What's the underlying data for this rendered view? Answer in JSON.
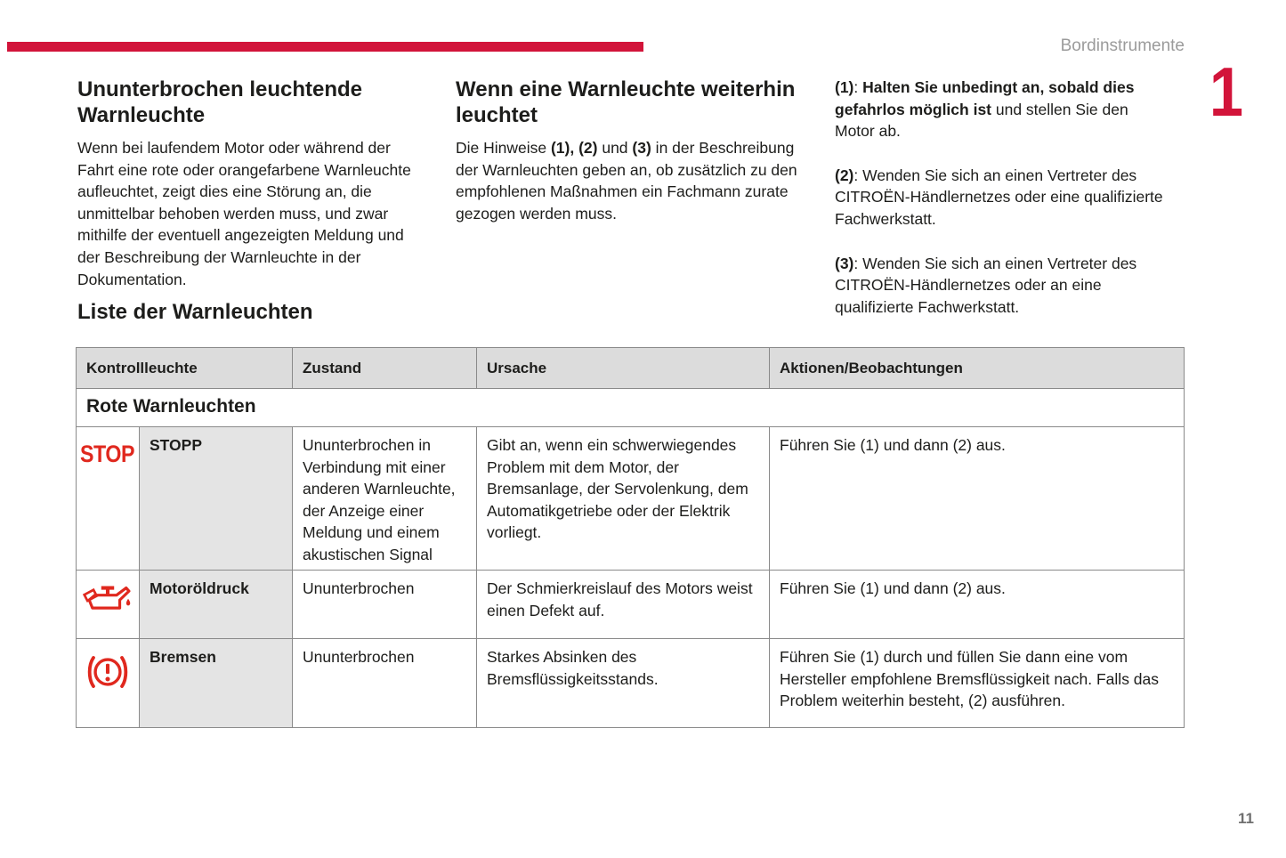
{
  "header": {
    "section_title": "Bordinstrumente",
    "chapter_number": "1",
    "page_number": "11"
  },
  "colors": {
    "accent_red": "#d2143a",
    "icon_red": "#e0281e",
    "table_header_bg": "#dcdcdc",
    "name_cell_bg": "#e4e4e4",
    "table_border": "#8a8a8a",
    "text": "#1d1d1b",
    "muted_gray": "#9b9b9b",
    "page_number_gray": "#6f6f6f"
  },
  "intro": {
    "col1": {
      "heading": "Ununterbrochen leuchtende Warnleuchte",
      "body": "Wenn bei laufendem Motor oder während der Fahrt eine rote oder orangefarbene Warnleuchte aufleuchtet, zeigt dies eine Störung an, die unmittelbar behoben werden muss, und zwar mithilfe der eventuell angezeigten Meldung und der Beschreibung der Warnleuchte in der Dokumentation."
    },
    "col2": {
      "heading": "Wenn eine Warnleuchte weiterhin leuchtet",
      "body_segments": [
        {
          "t": "Die Hinweise "
        },
        {
          "t": "(1), (2)",
          "b": true
        },
        {
          "t": " und "
        },
        {
          "t": "(3)",
          "b": true
        },
        {
          "t": " in der Beschreibung der Warnleuchten geben an, ob zusätzlich zu den empfohlenen Maßnahmen ein Fachmann zurate gezogen werden muss."
        }
      ]
    },
    "col3": {
      "items": [
        {
          "segments": [
            {
              "t": "(1)",
              "b": true
            },
            {
              "t": ": "
            },
            {
              "t": "Halten Sie unbedingt an, sobald dies gefahrlos möglich ist",
              "b": true
            },
            {
              "t": " und stellen Sie den Motor ab."
            }
          ]
        },
        {
          "segments": [
            {
              "t": "(2)",
              "b": true
            },
            {
              "t": ": Wenden Sie sich an einen Vertreter des CITROËN-Händlernetzes oder eine qualifizierte Fachwerkstatt."
            }
          ]
        },
        {
          "segments": [
            {
              "t": "(3)",
              "b": true
            },
            {
              "t": ": Wenden Sie sich an einen Vertreter des CITROËN-Händlernetzes oder an eine qualifizierte Fachwerkstatt."
            }
          ]
        }
      ]
    }
  },
  "list_heading": "Liste der Warnleuchten",
  "table": {
    "headers": {
      "kontrollleuchte": "Kontrollleuchte",
      "zustand": "Zustand",
      "ursache": "Ursache",
      "aktionen": "Aktionen/Beobachtungen"
    },
    "section_title": "Rote Warnleuchten",
    "rows": [
      {
        "icon": "stop-warning-icon",
        "icon_text": "STOP",
        "name": "STOPP",
        "zustand": "Ununterbrochen in Verbindung mit einer anderen Warnleuchte, der Anzeige einer Meldung und einem akustischen Signal",
        "ursache": "Gibt an, wenn ein schwerwiegendes Problem mit dem Motor, der Bremsanlage, der Servolenkung, dem Automatikgetriebe oder der Elektrik vorliegt.",
        "aktionen": "Führen Sie (1) und dann (2) aus."
      },
      {
        "icon": "oil-pressure-icon",
        "name": "Motoröldruck",
        "zustand": "Ununterbrochen",
        "ursache": "Der Schmierkreislauf des Motors weist einen Defekt auf.",
        "aktionen": "Führen Sie (1) und dann (2) aus."
      },
      {
        "icon": "brake-warning-icon",
        "name": "Bremsen",
        "zustand": "Ununterbrochen",
        "ursache": "Starkes Absinken des Bremsflüssigkeitsstands.",
        "aktionen": "Führen Sie (1) durch und füllen Sie dann eine vom Hersteller empfohlene Bremsflüssigkeit nach. Falls das Problem weiterhin besteht, (2) ausführen."
      }
    ]
  }
}
